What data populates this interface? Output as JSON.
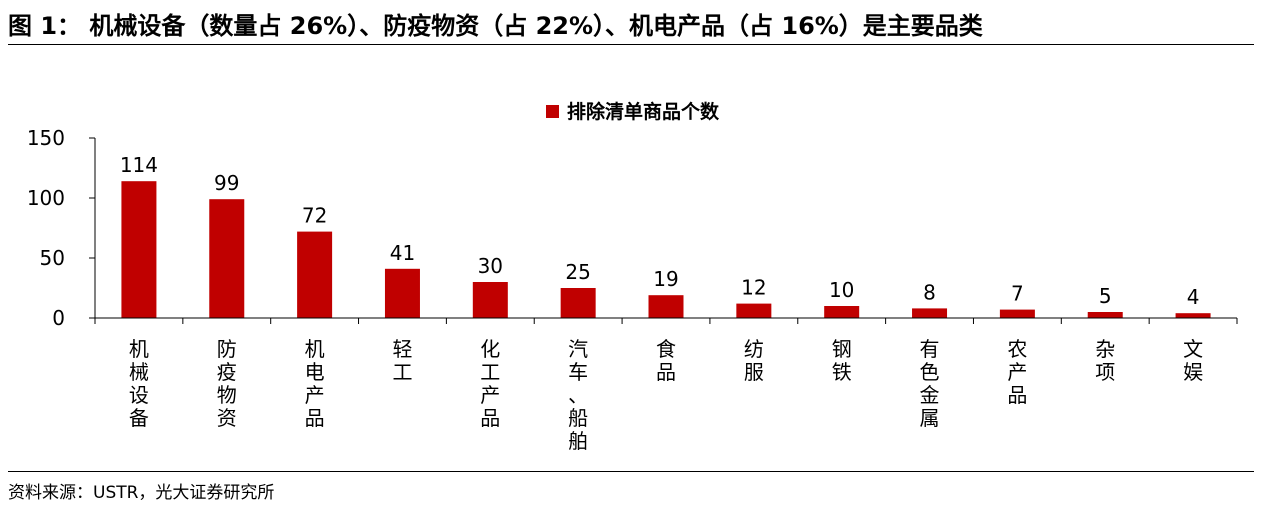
{
  "figure": {
    "title": "图 1：   机械设备（数量占 26%）、防疫物资（占 22%）、机电产品（占 16%）是主要品类",
    "source": "资料来源：USTR，光大证券研究所"
  },
  "colors": {
    "bar": "#C00000",
    "axis": "#000000"
  },
  "chart_data": {
    "type": "bar",
    "categories": [
      "机械设备",
      "防疫物资",
      "机电产品",
      "轻工",
      "化工产品",
      "汽车、船舶",
      "食品",
      "纺服",
      "钢铁",
      "有色金属",
      "农产品",
      "杂项",
      "文娱"
    ],
    "series": [
      {
        "name": "排除清单商品个数",
        "values": [
          114,
          99,
          72,
          41,
          30,
          25,
          19,
          12,
          10,
          8,
          7,
          5,
          4
        ]
      }
    ],
    "ylim": [
      0,
      150
    ],
    "yticks": [
      0,
      50,
      100,
      150
    ],
    "grid": false,
    "legend": "top-center",
    "data_labels": true
  }
}
